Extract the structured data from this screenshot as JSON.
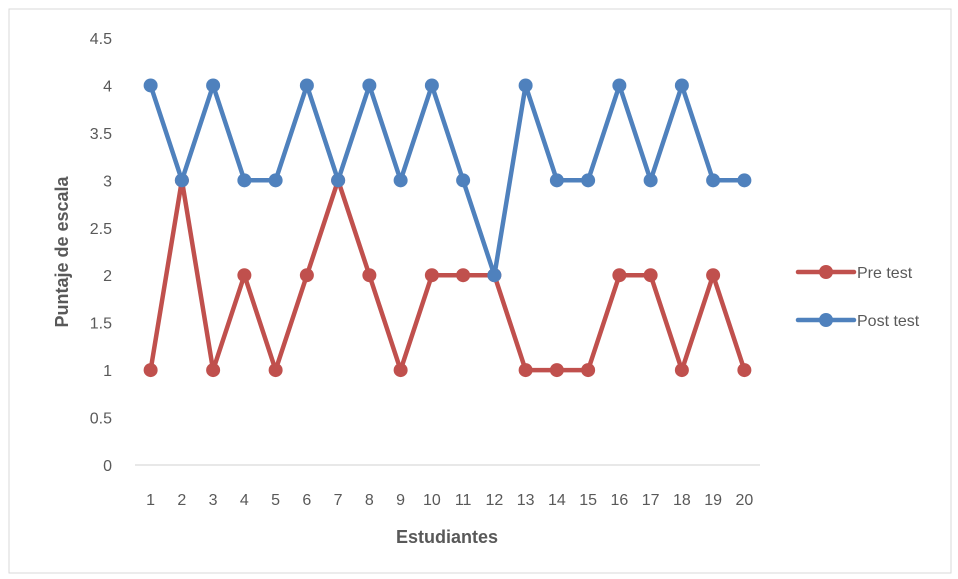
{
  "chart_data": {
    "type": "line",
    "title": "",
    "xlabel": "Estudiantes",
    "ylabel": "Puntaje  de escala",
    "categories": [
      "1",
      "2",
      "3",
      "4",
      "5",
      "6",
      "7",
      "8",
      "9",
      "10",
      "11",
      "12",
      "13",
      "14",
      "15",
      "16",
      "17",
      "18",
      "19",
      "20"
    ],
    "yticks": [
      "0",
      "0.5",
      "1",
      "1.5",
      "2",
      "2.5",
      "3",
      "3.5",
      "4",
      "4.5"
    ],
    "ylim": [
      0,
      4.5
    ],
    "grid": false,
    "legend_position": "right",
    "series": [
      {
        "name": "Pre test",
        "color": "#C0504D",
        "values": [
          1,
          3,
          1,
          2,
          1,
          2,
          3,
          2,
          1,
          2,
          2,
          2,
          1,
          1,
          1,
          2,
          2,
          1,
          2,
          1
        ]
      },
      {
        "name": "Post test",
        "color": "#4F81BD",
        "values": [
          4,
          3,
          4,
          3,
          3,
          4,
          3,
          4,
          3,
          4,
          3,
          2,
          4,
          3,
          3,
          4,
          3,
          4,
          3,
          3
        ]
      }
    ]
  }
}
